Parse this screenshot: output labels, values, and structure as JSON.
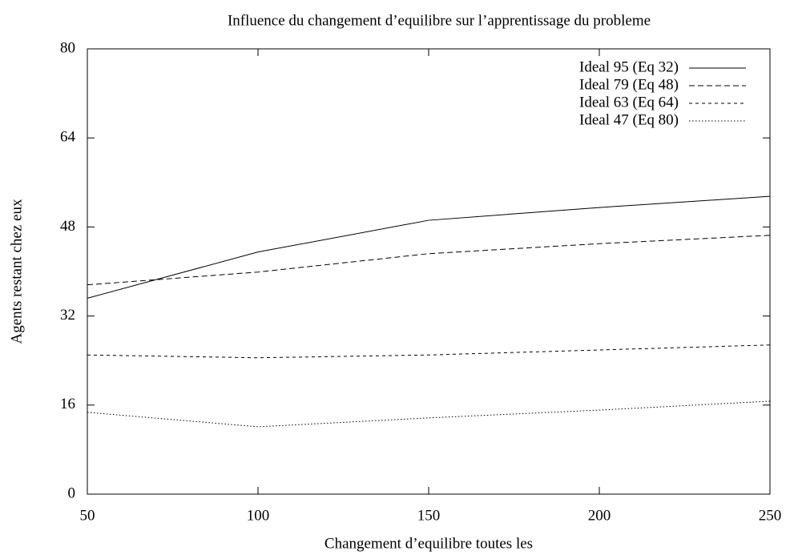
{
  "chart_data": {
    "type": "line",
    "title": "Influence du changement d’equilibre sur l’apprentissage du probleme",
    "x_label": "Changement d’equilibre toutes les",
    "y_label": "Agents restant chez eux",
    "x": [
      50,
      100,
      150,
      200,
      250
    ],
    "series": [
      {
        "name": "Ideal 95 (Eq 32)",
        "color": "#000000",
        "values": [
          35.2,
          43.5,
          49.2,
          51.5,
          53.5
        ]
      },
      {
        "name": "Ideal 79 (Eq 48)",
        "color": "#000000",
        "values": [
          37.6,
          39.9,
          43.2,
          45,
          46.5
        ]
      },
      {
        "name": "Ideal 63 (Eq 64)",
        "color": "#000000",
        "values": [
          25,
          24.5,
          25,
          25.9,
          26.8
        ]
      },
      {
        "name": "Ideal 47 (Eq 80)",
        "color": "#000000",
        "values": [
          14.7,
          12.1,
          13.7,
          15.1,
          16.7
        ]
      }
    ],
    "xlim": [
      50,
      250
    ],
    "xticks": [
      50,
      100,
      150,
      200,
      250
    ],
    "ylim": [
      0,
      80
    ],
    "yticks": [
      0,
      16,
      32,
      48,
      64,
      80
    ],
    "legend": "top-right",
    "grid": false
  }
}
